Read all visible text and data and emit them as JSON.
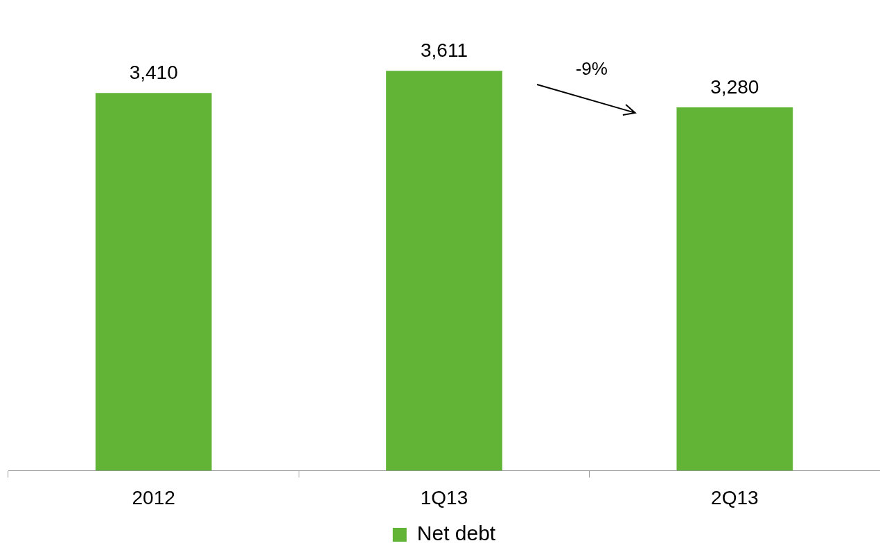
{
  "chart_data": {
    "type": "bar",
    "categories": [
      "2012",
      "1Q13",
      "2Q13"
    ],
    "series": [
      {
        "name": "Net debt",
        "color": "#62b436",
        "values": [
          3410,
          3611,
          3280
        ],
        "value_labels": [
          "3,410",
          "3,611",
          "3,280"
        ]
      }
    ],
    "tick_labels": "x",
    "legend": "bottom",
    "grid": false,
    "annotations": [
      "-9%"
    ]
  }
}
